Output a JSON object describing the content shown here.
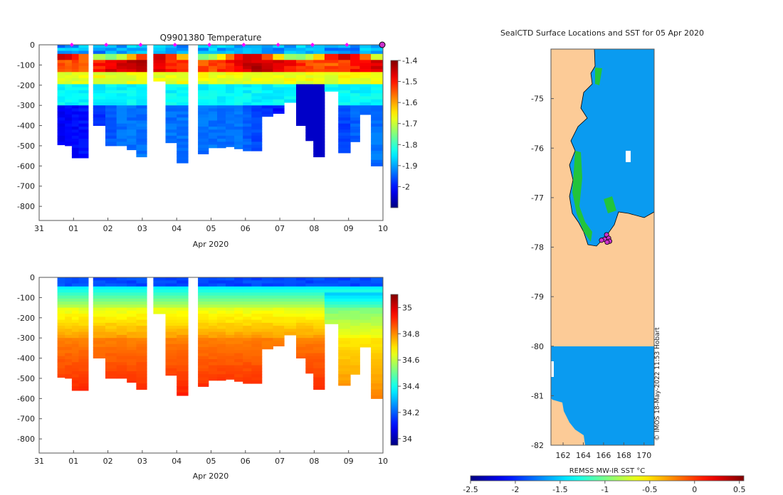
{
  "chart_data": [
    {
      "type": "heatmap",
      "title": "Q9901380  Temperature",
      "xlabel": "Apr 2020",
      "ylabel": "",
      "x_ticks": [
        "31",
        "01",
        "02",
        "03",
        "04",
        "05",
        "06",
        "07",
        "08",
        "09",
        "10"
      ],
      "x_range_days": [
        0,
        10
      ],
      "y_ticks": [
        0,
        -100,
        -200,
        -300,
        -400,
        -500,
        -600,
        -700,
        -800
      ],
      "ylim": [
        -870,
        0
      ],
      "colorbar": {
        "ticks": [
          -1.4,
          -1.5,
          -1.6,
          -1.7,
          -1.8,
          -1.9,
          -2
        ],
        "vmin": -2.1,
        "vmax": -1.4,
        "palette": "jet"
      },
      "profile_marker_days": [
        1,
        2,
        3,
        4,
        5,
        6,
        7,
        8,
        9,
        10
      ],
      "surface_marker_day": 10,
      "profiles": [
        {
          "day": 0.65,
          "max_depth": 495
        },
        {
          "day": 0.85,
          "max_depth": 500
        },
        {
          "day": 1.05,
          "max_depth": 560
        },
        {
          "day": 1.25,
          "max_depth": 560
        },
        {
          "day": 1.75,
          "max_depth": 400
        },
        {
          "day": 2.1,
          "max_depth": 500
        },
        {
          "day": 2.4,
          "max_depth": 500
        },
        {
          "day": 2.7,
          "max_depth": 520
        },
        {
          "day": 2.95,
          "max_depth": 555
        },
        {
          "day": 3.5,
          "max_depth": 180
        },
        {
          "day": 3.85,
          "max_depth": 485
        },
        {
          "day": 4.15,
          "max_depth": 585
        },
        {
          "day": 4.8,
          "max_depth": 540
        },
        {
          "day": 5.05,
          "max_depth": 510
        },
        {
          "day": 5.3,
          "max_depth": 510
        },
        {
          "day": 5.55,
          "max_depth": 505
        },
        {
          "day": 5.8,
          "max_depth": 515
        },
        {
          "day": 6.05,
          "max_depth": 525
        },
        {
          "day": 6.3,
          "max_depth": 525
        },
        {
          "day": 6.65,
          "max_depth": 355
        },
        {
          "day": 6.95,
          "max_depth": 340
        },
        {
          "day": 7.3,
          "max_depth": 285
        },
        {
          "day": 7.65,
          "max_depth": 400
        },
        {
          "day": 7.85,
          "max_depth": 475
        },
        {
          "day": 8.1,
          "max_depth": 555
        },
        {
          "day": 8.5,
          "max_depth": 230
        },
        {
          "day": 8.9,
          "max_depth": 535
        },
        {
          "day": 9.2,
          "max_depth": 480
        },
        {
          "day": 9.45,
          "max_depth": 345
        },
        {
          "day": 9.85,
          "max_depth": 600
        }
      ]
    },
    {
      "type": "heatmap",
      "title": "",
      "xlabel": "Apr 2020",
      "ylabel": "",
      "x_ticks": [
        "31",
        "01",
        "02",
        "03",
        "04",
        "05",
        "06",
        "07",
        "08",
        "09",
        "10"
      ],
      "x_range_days": [
        0,
        10
      ],
      "y_ticks": [
        0,
        -100,
        -200,
        -300,
        -400,
        -500,
        -600,
        -700,
        -800
      ],
      "ylim": [
        -870,
        0
      ],
      "colorbar": {
        "ticks": [
          35,
          34.8,
          34.6,
          34.4,
          34.2,
          34
        ],
        "vmin": 33.95,
        "vmax": 35.1,
        "palette": "jet"
      }
    },
    {
      "type": "heatmap",
      "title": "SealCTD Surface Locations and SST for 05 Apr 2020",
      "xlabel": "",
      "ylabel": "",
      "x_ticks": [
        162,
        164,
        166,
        168,
        170
      ],
      "xlim": [
        160.8,
        171.0
      ],
      "y_ticks": [
        -75,
        -76,
        -77,
        -78,
        -79,
        -80,
        -81,
        -82
      ],
      "ylim": [
        -82,
        -74
      ],
      "colorbar": {
        "label": "REMSS MW-IR SST °C",
        "ticks": [
          -2.5,
          -2,
          -1.5,
          -1,
          -0.5,
          0,
          0.5
        ],
        "vmin": -2.5,
        "vmax": 0.55,
        "palette": "jet"
      },
      "land_color": "#fccb97",
      "sea_color": "#0a9bf0",
      "credit": "© IMOS 18-May-2022 11:53 Hobart",
      "surface_locations": [
        {
          "lon": 166.3,
          "lat": -77.75
        },
        {
          "lon": 166.5,
          "lat": -77.82
        },
        {
          "lon": 166.1,
          "lat": -77.84
        },
        {
          "lon": 165.8,
          "lat": -77.86
        },
        {
          "lon": 166.6,
          "lat": -77.88
        },
        {
          "lon": 166.35,
          "lat": -77.9
        }
      ]
    }
  ]
}
